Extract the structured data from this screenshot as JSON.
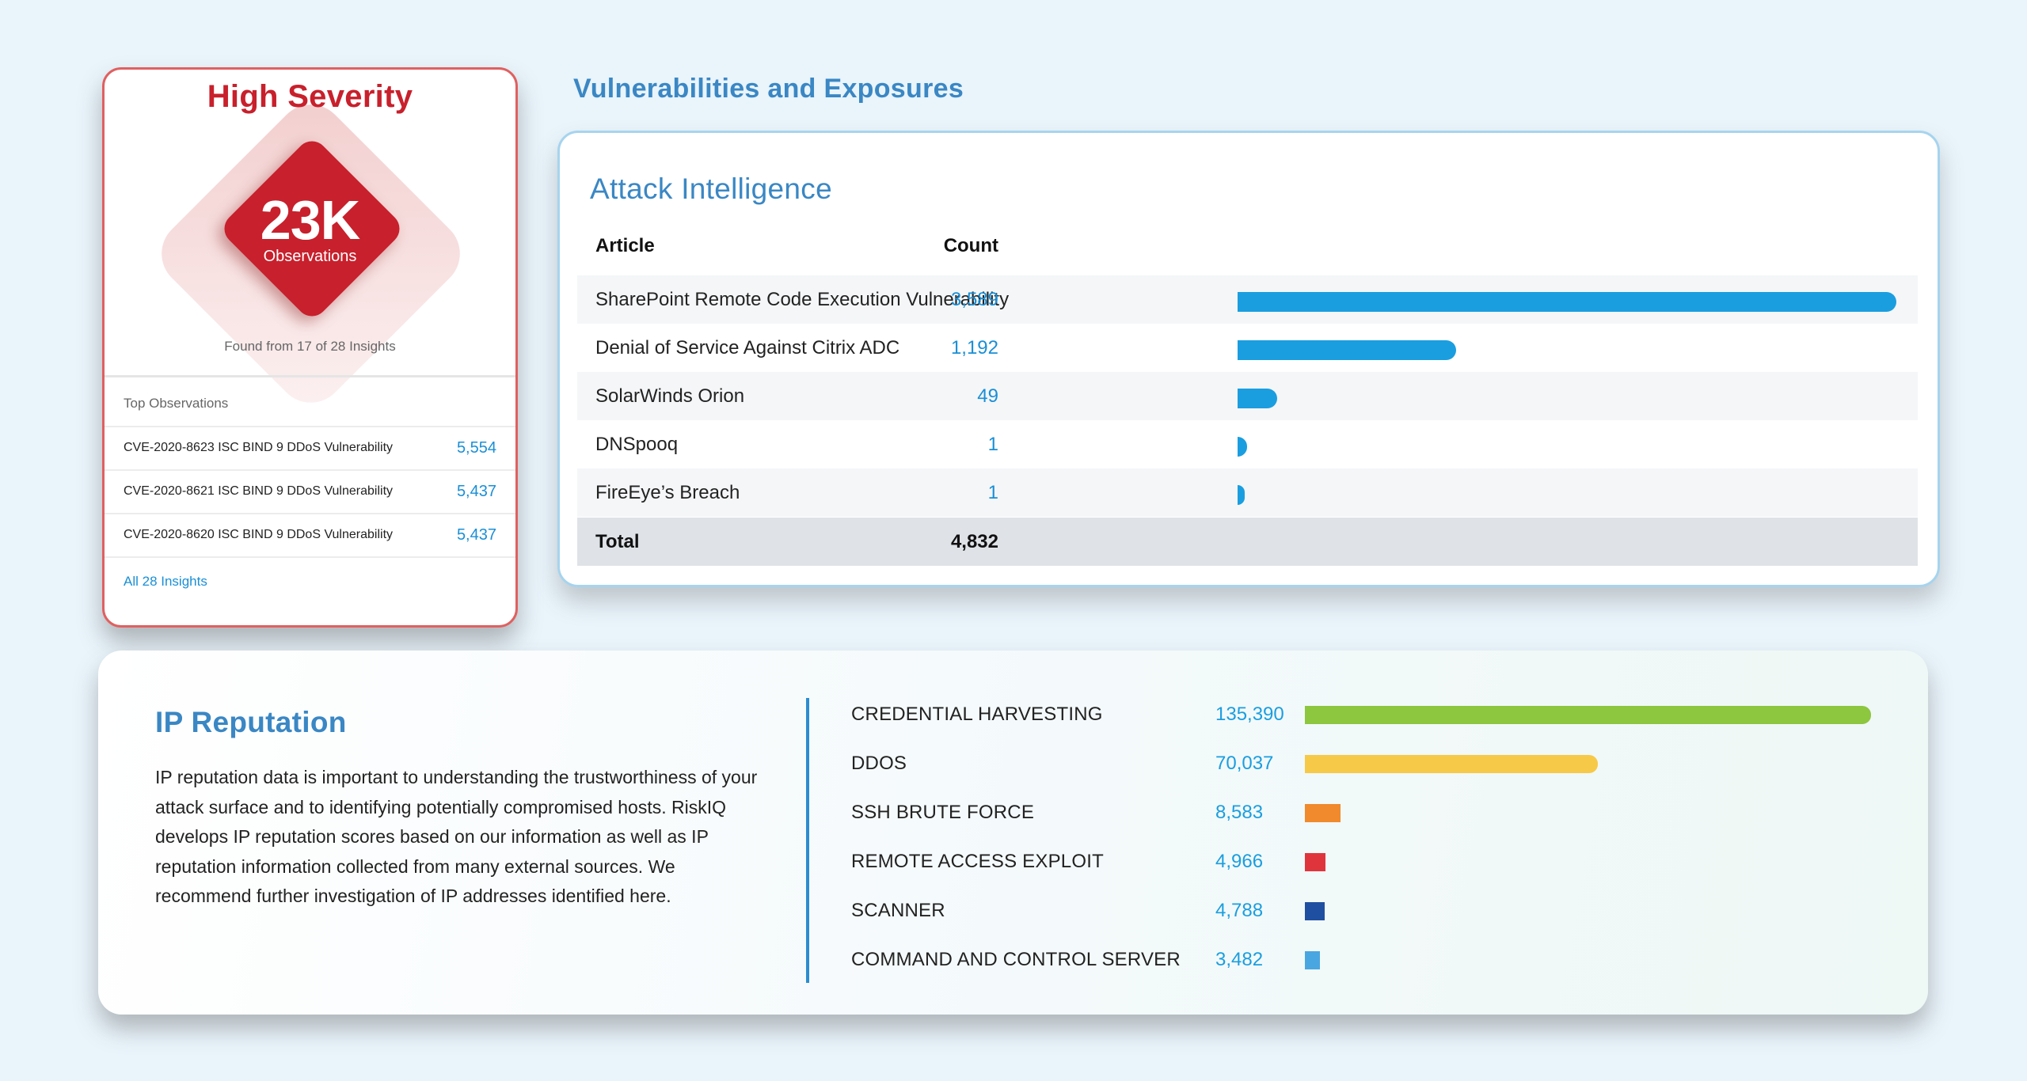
{
  "severity_card": {
    "title": "High Severity",
    "number": "23K",
    "number_label": "Observations",
    "found_text": "Found from 17 of 28 Insights",
    "top_label": "Top Observations",
    "observations": [
      {
        "name": "CVE-2020-8623 ISC BIND 9 DDoS Vulnerability",
        "value": "5,554"
      },
      {
        "name": "CVE-2020-8621 ISC BIND 9 DDoS Vulnerability",
        "value": "5,437"
      },
      {
        "name": "CVE-2020-8620 ISC BIND 9 DDoS Vulnerability",
        "value": "5,437"
      }
    ],
    "all_link": "All 28 Insights",
    "colors": {
      "accent": "#c8202c",
      "border": "#e06060",
      "link": "#1a8fd6"
    }
  },
  "section_heading": "Vulnerabilities and Exposures",
  "attack_intelligence": {
    "title": "Attack Intelligence",
    "col_article": "Article",
    "col_count": "Count",
    "rows": [
      {
        "article": "SharePoint Remote Code Execution Vulnerability",
        "count": "3,589",
        "value": 3589
      },
      {
        "article": "Denial of Service Against Citrix ADC",
        "count": "1,192",
        "value": 1192
      },
      {
        "article": "SolarWinds Orion",
        "count": "49",
        "value": 49
      },
      {
        "article": "DNSpooq",
        "count": "1",
        "value": 1
      },
      {
        "article": "FireEye’s Breach",
        "count": "1",
        "value": 1
      }
    ],
    "total_label": "Total",
    "total_count": "4,832",
    "colors": {
      "bar": "#1a9ee0",
      "heading": "#3a87c4"
    }
  },
  "ip_reputation": {
    "title": "IP Reputation",
    "description": "IP reputation data is important to understanding the trustworthiness of your attack surface and to identifying potentially compromised hosts. RiskIQ develops IP reputation scores based on our information as well as IP reputation information collected from many external sources. We recommend further investigation of IP addresses identified here.",
    "categories": [
      {
        "label": "CREDENTIAL HARVESTING",
        "count": "135,390",
        "value": 135390,
        "color": "#8dc63f"
      },
      {
        "label": "DDOS",
        "count": "70,037",
        "value": 70037,
        "color": "#f7c948"
      },
      {
        "label": "SSH BRUTE FORCE",
        "count": "8,583",
        "value": 8583,
        "color": "#f08a2c"
      },
      {
        "label": "REMOTE ACCESS EXPLOIT",
        "count": "4,966",
        "value": 4966,
        "color": "#e0343c"
      },
      {
        "label": "SCANNER",
        "count": "4,788",
        "value": 4788,
        "color": "#1f4fa0"
      },
      {
        "label": "COMMAND AND CONTROL SERVER",
        "count": "3,482",
        "value": 3482,
        "color": "#4aa6e0"
      }
    ]
  }
}
